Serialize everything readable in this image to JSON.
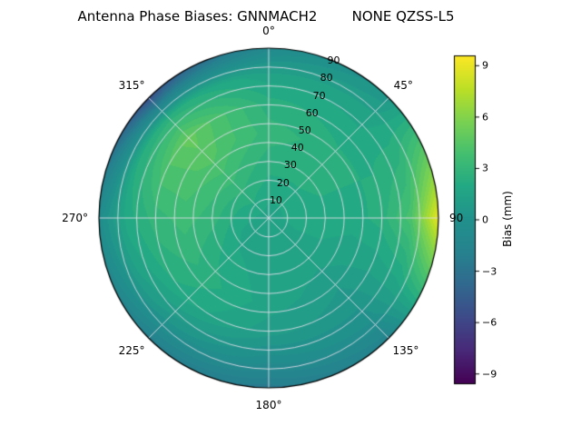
{
  "title": "Antenna Phase Biases: GNNMACH2        NONE QZSS-L5",
  "colorbar": {
    "label": "Bias (mm)",
    "ticks": [
      {
        "label": "9",
        "value": 9
      },
      {
        "label": "6",
        "value": 6
      },
      {
        "label": "3",
        "value": 3
      },
      {
        "label": "0",
        "value": 0
      },
      {
        "label": "−3",
        "value": -3
      },
      {
        "label": "−6",
        "value": -6
      },
      {
        "label": "−9",
        "value": -9
      }
    ]
  },
  "chart_data": {
    "type": "heatmap",
    "projection": "polar",
    "title": "Antenna Phase Biases: GNNMACH2        NONE QZSS-L5",
    "colorbar_label": "Bias (mm)",
    "colormap": "viridis",
    "value_range": [
      -9.6,
      9.6
    ],
    "azimuth_direction": "clockwise-from-north",
    "theta_ticks": [
      {
        "label": "0°",
        "az": 0
      },
      {
        "label": "45°",
        "az": 45
      },
      {
        "label": "90",
        "az": 90
      },
      {
        "label": "135°",
        "az": 135
      },
      {
        "label": "180°",
        "az": 180
      },
      {
        "label": "225°",
        "az": 225
      },
      {
        "label": "270°",
        "az": 270
      },
      {
        "label": "315°",
        "az": 315
      }
    ],
    "r_ticks": [
      {
        "label": "10",
        "value": 10
      },
      {
        "label": "20",
        "value": 20
      },
      {
        "label": "30",
        "value": 30
      },
      {
        "label": "40",
        "value": 40
      },
      {
        "label": "50",
        "value": 50
      },
      {
        "label": "60",
        "value": 60
      },
      {
        "label": "70",
        "value": 70
      },
      {
        "label": "80",
        "value": 80
      },
      {
        "label": "90",
        "value": 90
      }
    ],
    "r_label_angle_deg": 22.5,
    "r_max": 90,
    "azimuth_deg": [
      0,
      45,
      90,
      135,
      180,
      225,
      270,
      315,
      360
    ],
    "zenith_deg": [
      0,
      15,
      30,
      45,
      60,
      75,
      90
    ],
    "bias_mm": [
      [
        1.5,
        2.0,
        2.5,
        3.0,
        2.5,
        1.5,
        -1.0
      ],
      [
        1.5,
        2.0,
        2.5,
        2.5,
        2.0,
        1.5,
        0.5
      ],
      [
        1.5,
        2.0,
        2.0,
        2.0,
        2.5,
        4.0,
        9.0
      ],
      [
        1.5,
        1.5,
        1.5,
        1.0,
        0.5,
        0.0,
        -1.5
      ],
      [
        1.5,
        1.5,
        1.5,
        1.5,
        1.0,
        -0.5,
        -2.5
      ],
      [
        1.5,
        1.5,
        2.0,
        2.5,
        2.0,
        0.5,
        -2.0
      ],
      [
        1.5,
        2.0,
        3.0,
        3.5,
        3.0,
        2.0,
        -0.5
      ],
      [
        1.5,
        2.5,
        3.5,
        4.5,
        5.0,
        2.5,
        -5.5
      ],
      [
        1.5,
        2.0,
        2.5,
        3.0,
        2.5,
        1.5,
        -1.0
      ]
    ],
    "viridis_stops": [
      "#440154",
      "#482878",
      "#3e4a89",
      "#31688e",
      "#26828e",
      "#21918c",
      "#22a884",
      "#44bf70",
      "#7ad151",
      "#bddf26",
      "#fde725"
    ],
    "grid_color": "#dcdce8",
    "grid": true,
    "legend_position": "right-colorbar"
  }
}
